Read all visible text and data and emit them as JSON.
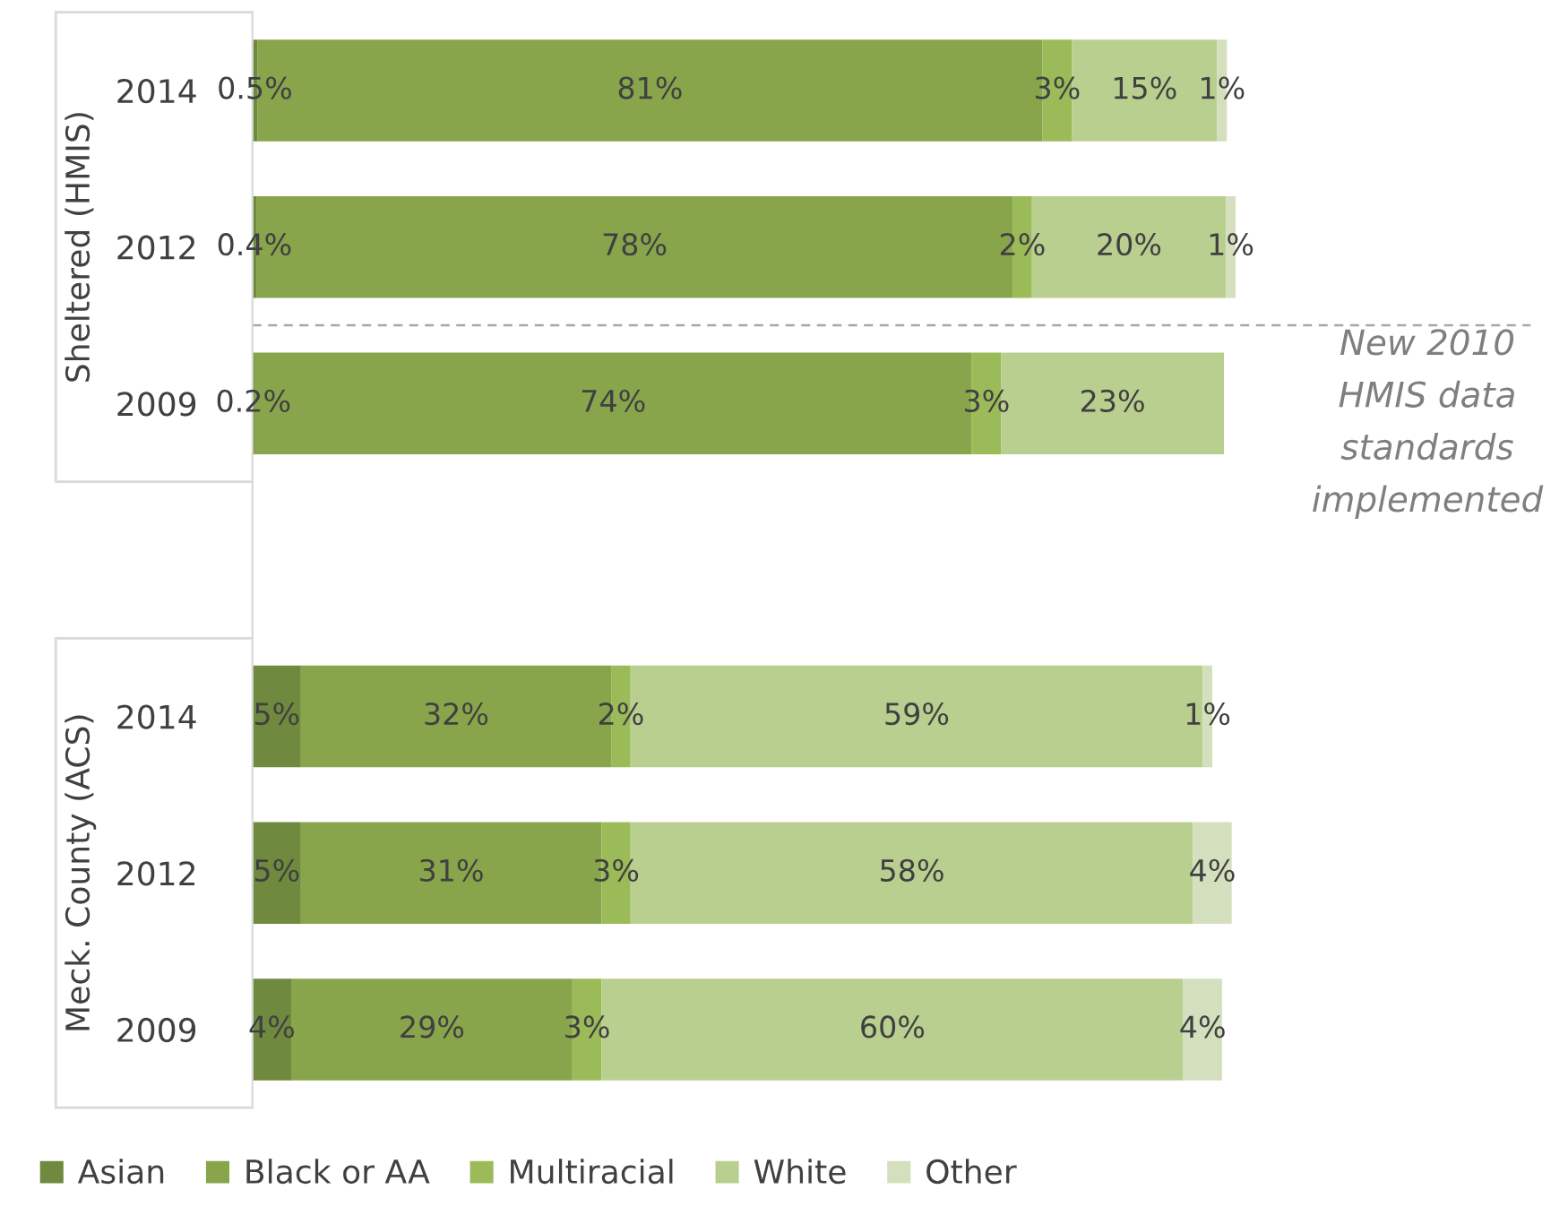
{
  "chart_data": {
    "type": "bar",
    "orientation": "horizontal",
    "stacked": true,
    "categories": [
      "2014",
      "2012",
      "2009",
      null,
      "2014",
      "2012",
      "2009"
    ],
    "series": [
      {
        "name": "Asian",
        "color": "#6f8a3e",
        "values": [
          0.5,
          0.4,
          0.2,
          null,
          5,
          5,
          4
        ],
        "value_labels": [
          "0.5%",
          "0.4%",
          "0.2%",
          null,
          "5%",
          "5%",
          "4%"
        ]
      },
      {
        "name": "Black or AA",
        "color": "#88a54c",
        "values": [
          81,
          78,
          74,
          null,
          32,
          31,
          29
        ],
        "value_labels": [
          "81%",
          "78%",
          "74%",
          null,
          "32%",
          "31%",
          "29%"
        ]
      },
      {
        "name": "Multiracial",
        "color": "#9bbb59",
        "values": [
          3,
          2,
          3,
          null,
          2,
          3,
          3
        ],
        "value_labels": [
          "3%",
          "2%",
          "3%",
          null,
          "2%",
          "3%",
          "3%"
        ]
      },
      {
        "name": "White",
        "color": "#b9cf8f",
        "values": [
          15,
          20,
          23,
          null,
          59,
          58,
          60
        ],
        "value_labels": [
          "15%",
          "20%",
          "23%",
          null,
          "59%",
          "58%",
          "60%"
        ]
      },
      {
        "name": "Other",
        "color": "#d4e0bd",
        "values": [
          1,
          1,
          null,
          null,
          1,
          4,
          4
        ],
        "value_labels": [
          "1%",
          "1%",
          null,
          null,
          "1%",
          "4%",
          "4%"
        ]
      }
    ],
    "tick_labels": "y",
    "annotations": [
      "Sheltered (HMIS)",
      "Meck. County (ACS)",
      "New 2010\nHMIS data\nstandards\nimplemented"
    ],
    "legend": "bottom",
    "grid": false
  }
}
